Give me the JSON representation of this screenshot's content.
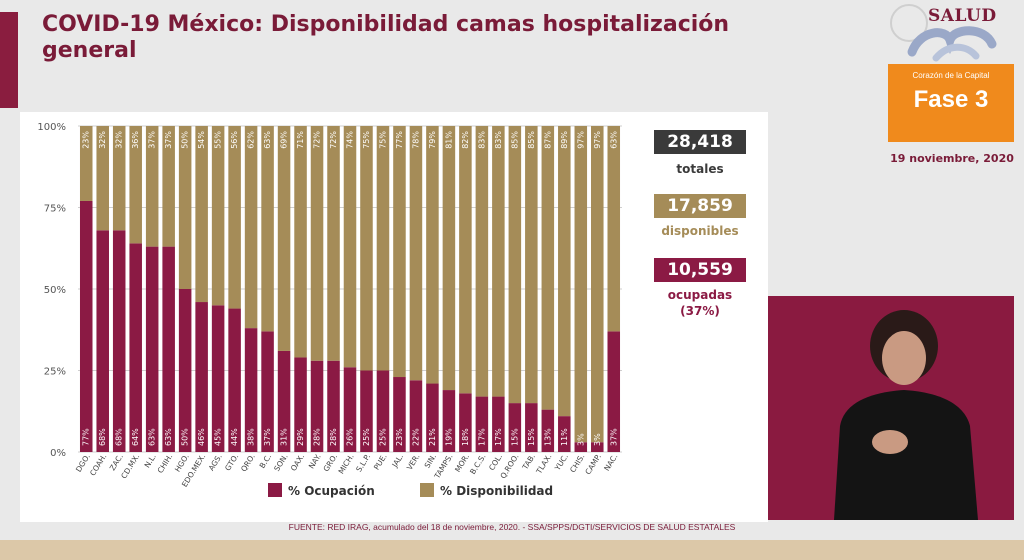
{
  "header": {
    "title": "COVID-19 México: Disponibilidad camas hospitalización general"
  },
  "logo": {
    "text": "SALUD"
  },
  "fase": {
    "subtitle": "Corazón de la Capital",
    "label": "Fase 3",
    "color": "#f08a1c"
  },
  "date": "19 noviembre, 2020",
  "stats": {
    "totales": {
      "value": "28,418",
      "label": "totales",
      "color": "#3a3a3a"
    },
    "disponibles": {
      "value": "17,859",
      "label": "disponibles",
      "color": "#a58c58"
    },
    "ocupadas": {
      "value": "10,559",
      "label": "ocupadas",
      "sublabel": "(37%)",
      "color": "#8b1a44"
    }
  },
  "source": "FUENTE: RED IRAG, acumulado del 18 de noviembre, 2020. - SSA/SPPS/DGTI/SERVICIOS DE SALUD ESTATALES",
  "chart_data": {
    "type": "bar",
    "stacked": true,
    "categories": [
      "DGO.",
      "COAH.",
      "ZAC.",
      "CD.MX.",
      "N.L.",
      "CHIH.",
      "HGO.",
      "EDO.MEX.",
      "AGS.",
      "GTO.",
      "QRO.",
      "B.C.",
      "SON.",
      "OAX.",
      "NAY.",
      "GRO.",
      "MICH.",
      "S.L.P.",
      "PUE.",
      "JAL.",
      "VER.",
      "SIN.",
      "TAMPS.",
      "MOR.",
      "B.C.S.",
      "COL.",
      "Q.ROO.",
      "TAB.",
      "TLAX.",
      "YUC.",
      "CHIS.",
      "CAMP.",
      "NAC."
    ],
    "series": [
      {
        "name": "% Ocupación",
        "color": "#8b1a44",
        "values": [
          77,
          68,
          68,
          64,
          63,
          63,
          50,
          46,
          45,
          44,
          38,
          37,
          31,
          29,
          28,
          28,
          26,
          25,
          25,
          23,
          22,
          21,
          19,
          18,
          17,
          17,
          15,
          15,
          13,
          11,
          3,
          3,
          37
        ]
      },
      {
        "name": "% Disponibilidad",
        "color": "#a58c58",
        "values": [
          23,
          32,
          32,
          36,
          37,
          37,
          50,
          54,
          55,
          56,
          62,
          63,
          69,
          71,
          72,
          72,
          74,
          75,
          75,
          77,
          78,
          79,
          81,
          82,
          83,
          83,
          85,
          85,
          87,
          89,
          97,
          97,
          63
        ]
      }
    ],
    "ylim": [
      0,
      100
    ],
    "yticks": [
      "0%",
      "25%",
      "50%",
      "75%",
      "100%"
    ],
    "grid": true,
    "legend_position": "bottom"
  }
}
